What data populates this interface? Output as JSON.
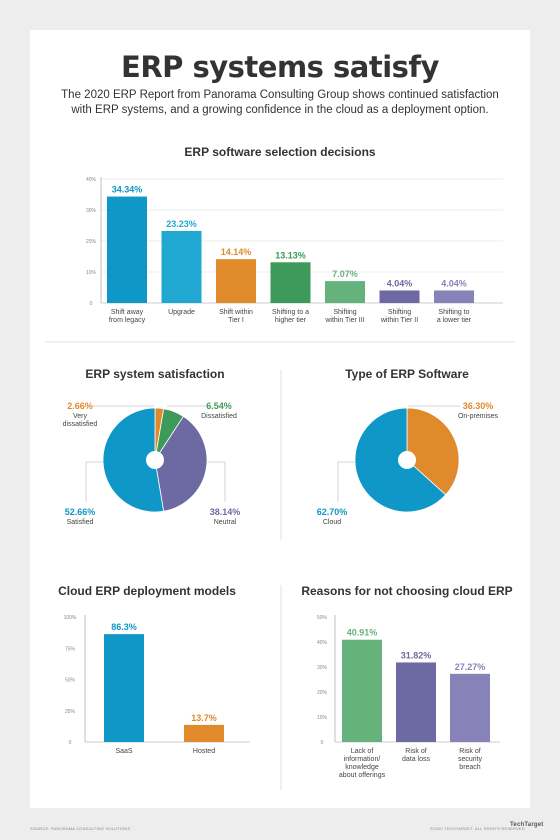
{
  "header": {
    "title": "ERP systems satisfy",
    "subtitle": "The 2020 ERP Report from Panorama Consulting Group shows continued satisfaction with ERP systems, and a growing confidence in the cloud as a deployment option."
  },
  "footer": {
    "source": "SOURCE: PANORAMA CONSULTING SOLUTIONS",
    "copyright": "©2020 TECHTARGET. ALL RIGHTS RESERVED",
    "brand": "TechTarget"
  },
  "colors": {
    "blue": "#0e97c7",
    "lightblue": "#21a8d2",
    "orange": "#e08a2c",
    "green": "#3e9a5a",
    "lightgreen": "#65b27d",
    "purple": "#6d6aa3",
    "lavender": "#8782b8",
    "axis": "#999999",
    "grid": "#dddddd"
  },
  "chart_data": [
    {
      "type": "bar",
      "title": "ERP software selection decisions",
      "categories": [
        "Shift away from legacy",
        "Upgrade",
        "Shift within Tier I",
        "Shifting to a higher tier",
        "Shifting within Tier III",
        "Shifting within Tier II",
        "Shifting to a lower tier"
      ],
      "values": [
        34.34,
        23.23,
        14.14,
        13.13,
        7.07,
        4.04,
        4.04
      ],
      "value_labels": [
        "34.34%",
        "23.23%",
        "14.14%",
        "13.13%",
        "7.07%",
        "4.04%",
        "4.04%"
      ],
      "ylim": [
        0,
        40
      ],
      "yticks": [
        "0",
        "10%",
        "20%",
        "30%",
        "40%"
      ],
      "grid": true
    },
    {
      "type": "pie",
      "title": "ERP system satisfaction",
      "categories": [
        "Very dissatisfied",
        "Dissatisfied",
        "Neutral",
        "Satisfied"
      ],
      "values": [
        2.66,
        6.54,
        38.14,
        52.66
      ],
      "value_labels": [
        "2.66%",
        "6.54%",
        "38.14%",
        "52.66%"
      ]
    },
    {
      "type": "pie",
      "title": "Type of ERP Software",
      "categories": [
        "On-premises",
        "Cloud"
      ],
      "values": [
        36.3,
        62.7
      ],
      "value_labels": [
        "36.30%",
        "62.70%"
      ]
    },
    {
      "type": "bar",
      "title": "Cloud ERP deployment models",
      "categories": [
        "SaaS",
        "Hosted"
      ],
      "values": [
        86.3,
        13.7
      ],
      "value_labels": [
        "86.3%",
        "13.7%"
      ],
      "ylim": [
        0,
        100
      ],
      "yticks": [
        "0",
        "25%",
        "50%",
        "75%",
        "100%"
      ],
      "grid": false
    },
    {
      "type": "bar",
      "title": "Reasons for not choosing cloud ERP",
      "categories": [
        "Lack of information/ knowledge about offerings",
        "Risk of data loss",
        "Risk of security breach"
      ],
      "values": [
        40.91,
        31.82,
        27.27
      ],
      "value_labels": [
        "40.91%",
        "31.82%",
        "27.27%"
      ],
      "ylim": [
        0,
        50
      ],
      "yticks": [
        "0",
        "10%",
        "20%",
        "30%",
        "40%",
        "50%"
      ],
      "grid": false
    }
  ]
}
